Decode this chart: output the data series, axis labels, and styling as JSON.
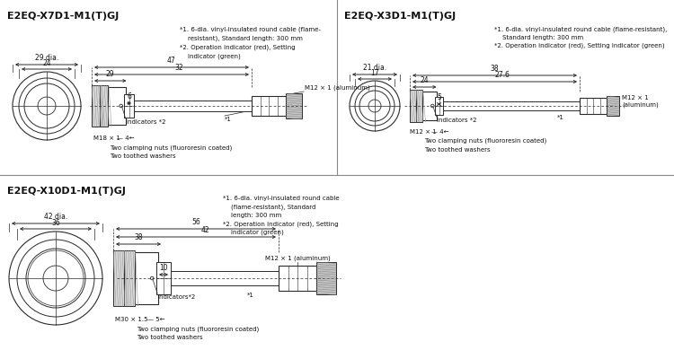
{
  "bg_color": "#ffffff",
  "line_color": "#2a2a2a",
  "text_color": "#111111",
  "divider_color": "#888888",
  "panels": {
    "top_left": {
      "title": "E2EQ-X7D1-M1(T)GJ",
      "notes": [
        "*1. 6-dia. vinyl-insulated round cable (flame-",
        "    resistant), Standard length: 300 mm",
        "*2. Operation indicator (red), Setting",
        "    indicator (green)"
      ],
      "dia_outer": "29 dia.",
      "dia_inner": "24",
      "dims": [
        "47",
        "32",
        "29",
        "6"
      ],
      "nut_label": "M18 × 1",
      "nut_gap": "4",
      "clamping": "Two clamping nuts (fluororesin coated)",
      "washers": "Two toothed washers",
      "conn_label": "M12 × 1 (aluminum)",
      "ind_label": "Indicators *2",
      "star1": "*1"
    },
    "top_right": {
      "title": "E2EQ-X3D1-M1(T)GJ",
      "notes": [
        "*1. 6-dia. vinyl-insulated round cable (flame-resistant),",
        "    Standard length: 300 mm",
        "*2. Operation indicator (red), Setting indicator (green)"
      ],
      "dia_outer": "21 dia.",
      "dia_inner": "17",
      "dims": [
        "38",
        "27.6",
        "24",
        "5"
      ],
      "nut_label": "M12 × 1",
      "nut_gap": "4",
      "clamping": "Two clamping nuts (fluororesin coated)",
      "washers": "Two toothed washers",
      "conn_label": "M12 × 1\n(aluminum)",
      "ind_label": "Indicators *2",
      "star1": "*1"
    },
    "bottom_left": {
      "title": "E2EQ-X10D1-M1(T)GJ",
      "notes": [
        "*1. 6-dia. vinyl-insulated round cable",
        "    (flame-resistant), Standard",
        "    length: 300 mm",
        "*2. Operation indicator (red), Setting",
        "    indicator (green)"
      ],
      "dia_outer": "42 dia.",
      "dia_inner": "36",
      "dims": [
        "56",
        "42",
        "38",
        "10"
      ],
      "nut_label": "M30 × 1.5",
      "nut_gap": "5",
      "clamping": "Two clamping nuts (fluororesin coated)",
      "washers": "Two toothed washers",
      "conn_label": "M12 × 1 (aluminum)",
      "ind_label": "Indicators*2",
      "star1": "*1"
    }
  }
}
